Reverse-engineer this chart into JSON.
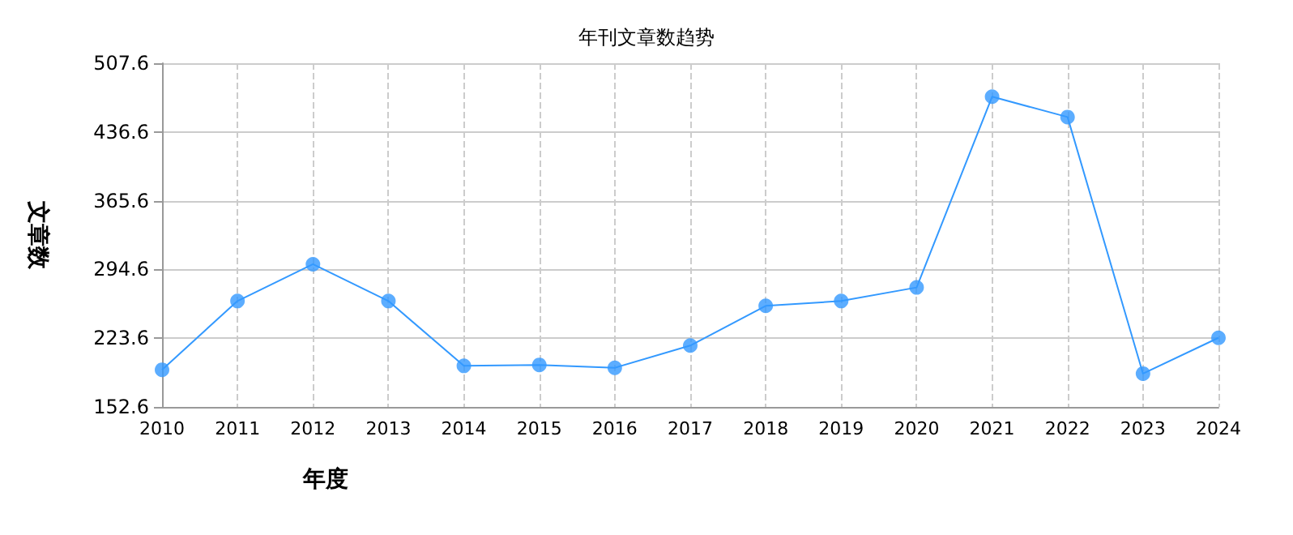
{
  "chart_data": {
    "type": "line",
    "title": "年刊文章数趋势",
    "xlabel": "年度",
    "ylabel": "文章数",
    "categories": [
      "2010",
      "2011",
      "2012",
      "2013",
      "2014",
      "2015",
      "2016",
      "2017",
      "2018",
      "2019",
      "2020",
      "2021",
      "2022",
      "2023",
      "2024"
    ],
    "series": [
      {
        "color": "#3399ff",
        "values": [
          191,
          262,
          300,
          262,
          195,
          196,
          193,
          216,
          257,
          262,
          276,
          473,
          452,
          187,
          224
        ]
      }
    ],
    "ylim": [
      152.6,
      507.6
    ],
    "yticks": [
      152.6,
      223.6,
      294.6,
      365.6,
      436.6,
      507.6
    ],
    "grid": true,
    "marker": "circle",
    "line_style": "solid"
  }
}
